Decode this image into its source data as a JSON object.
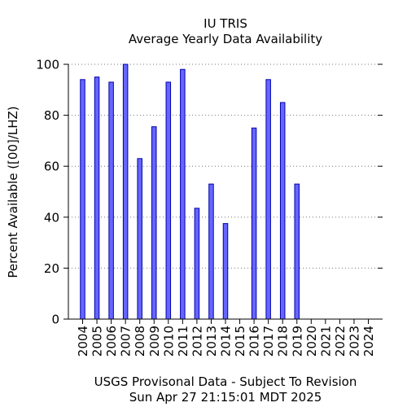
{
  "chart_data": {
    "type": "bar",
    "title": "IU TRIS",
    "subtitle": "Average Yearly Data Availability",
    "xlabel": "",
    "ylabel": "Percent Available ([00]/LHZ)",
    "footer_line1": "USGS Provisonal Data - Subject To Revision",
    "footer_line2": "Sun Apr 27 21:15:01 MDT 2025",
    "categories": [
      "2004",
      "2005",
      "2006",
      "2007",
      "2008",
      "2009",
      "2010",
      "2011",
      "2012",
      "2013",
      "2014",
      "2015",
      "2016",
      "2017",
      "2018",
      "2019",
      "2020",
      "2021",
      "2022",
      "2023",
      "2024"
    ],
    "values": [
      94,
      95,
      93,
      100,
      63,
      75.5,
      93,
      98,
      43.5,
      53,
      37.5,
      0,
      75,
      94,
      85,
      53,
      0,
      0,
      0,
      0,
      0
    ],
    "ylim": [
      0,
      100
    ],
    "yticks": [
      0,
      20,
      40,
      60,
      80,
      100
    ],
    "grid": true,
    "bar_fill": "#6666ff",
    "bar_stroke": "#0000aa"
  }
}
